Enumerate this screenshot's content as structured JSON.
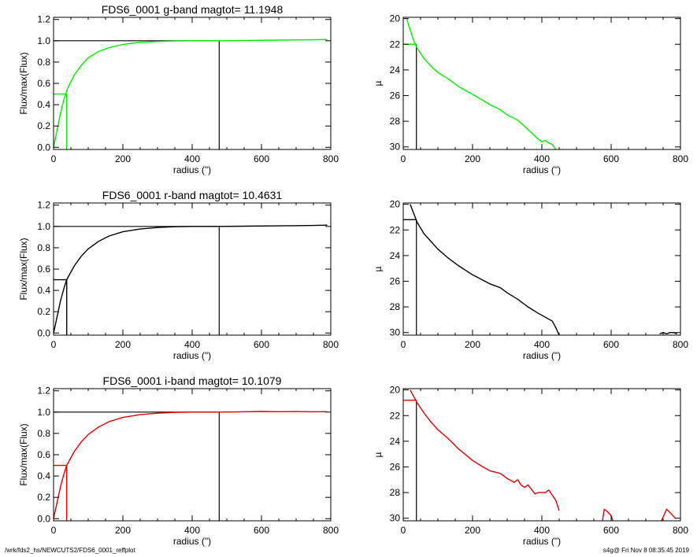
{
  "footer": {
    "path": "/wrk/fds2_hs/NEWCUTS2/FDS6_0001_reffplot",
    "stamp": "s4g@  Fri Nov  8 08:35:45 2019"
  },
  "chart_data": [
    {
      "panel": "g-band-growth",
      "type": "line",
      "title": "FDS6_0001 g-band  magtot=     11.1948",
      "xlabel": "radius (\")",
      "ylabel": "Flux/max(Flux)",
      "xlim": [
        0,
        800
      ],
      "ylim": [
        -0.02,
        1.22
      ],
      "xticks": [
        0,
        200,
        400,
        600,
        800
      ],
      "yticks": [
        0.0,
        0.2,
        0.4,
        0.6,
        0.8,
        1.0,
        1.2
      ],
      "curve_color": "#00ee00",
      "series": [
        {
          "x": [
            0,
            10,
            20,
            30,
            40,
            60,
            80,
            100,
            130,
            160,
            200,
            250,
            300,
            350,
            400,
            450,
            480,
            550,
            650,
            750,
            790
          ],
          "y": [
            0.0,
            0.16,
            0.32,
            0.45,
            0.55,
            0.68,
            0.77,
            0.84,
            0.9,
            0.935,
            0.965,
            0.985,
            0.993,
            0.998,
            1.0,
            1.0,
            1.0,
            1.002,
            1.006,
            1.01,
            1.012
          ]
        }
      ],
      "markers": {
        "half_light_x": 38,
        "half_light_y": 0.5,
        "total_x": 478,
        "total_y": 1.0
      }
    },
    {
      "panel": "g-band-profile",
      "type": "line",
      "xlabel": "radius (\")",
      "ylabel": "µ",
      "xlim": [
        0,
        800
      ],
      "ylim": [
        30.2,
        19.9
      ],
      "xticks": [
        0,
        200,
        400,
        600,
        800
      ],
      "yticks": [
        20,
        22,
        24,
        26,
        28,
        30
      ],
      "curve_color": "#00ee00",
      "series": [
        {
          "x": [
            10,
            20,
            30,
            40,
            60,
            80,
            100,
            130,
            160,
            200,
            250,
            280,
            300,
            330,
            350,
            370,
            390,
            400,
            410,
            420,
            430,
            440
          ],
          "y": [
            20.0,
            20.9,
            21.7,
            22.3,
            23.1,
            23.7,
            24.2,
            24.7,
            25.3,
            25.9,
            26.7,
            27.1,
            27.5,
            27.9,
            28.4,
            28.9,
            29.4,
            29.6,
            29.5,
            29.7,
            29.8,
            30.2
          ]
        }
      ],
      "markers": {
        "half_light_x": 38,
        "half_light_mu": 22.0
      }
    },
    {
      "panel": "r-band-growth",
      "type": "line",
      "title": "FDS6_0001 r-band  magtot=     10.4631",
      "xlabel": "radius (\")",
      "ylabel": "Flux/max(Flux)",
      "xlim": [
        0,
        800
      ],
      "ylim": [
        -0.02,
        1.22
      ],
      "xticks": [
        0,
        200,
        400,
        600,
        800
      ],
      "yticks": [
        0.0,
        0.2,
        0.4,
        0.6,
        0.8,
        1.0,
        1.2
      ],
      "curve_color": "#000000",
      "series": [
        {
          "x": [
            0,
            10,
            20,
            30,
            38,
            60,
            80,
            100,
            130,
            160,
            200,
            250,
            300,
            350,
            400,
            450,
            480,
            550,
            650,
            750,
            790
          ],
          "y": [
            0.0,
            0.15,
            0.3,
            0.42,
            0.5,
            0.63,
            0.72,
            0.79,
            0.86,
            0.91,
            0.95,
            0.976,
            0.99,
            0.997,
            1.0,
            1.0,
            1.0,
            1.002,
            1.005,
            1.009,
            1.012
          ]
        }
      ],
      "markers": {
        "half_light_x": 38,
        "half_light_y": 0.5,
        "total_x": 478,
        "total_y": 1.0
      }
    },
    {
      "panel": "r-band-profile",
      "type": "line",
      "xlabel": "radius (\")",
      "ylabel": "µ",
      "xlim": [
        0,
        800
      ],
      "ylim": [
        30.2,
        19.9
      ],
      "xticks": [
        0,
        200,
        400,
        600,
        800
      ],
      "yticks": [
        20,
        22,
        24,
        26,
        28,
        30
      ],
      "curve_color": "#000000",
      "series": [
        {
          "x": [
            20,
            30,
            40,
            60,
            80,
            100,
            130,
            160,
            200,
            250,
            280,
            300,
            330,
            360,
            390,
            410,
            430,
            440,
            450
          ],
          "y": [
            20.0,
            20.7,
            21.4,
            22.3,
            22.9,
            23.5,
            24.2,
            24.8,
            25.5,
            26.2,
            26.5,
            26.9,
            27.4,
            28.0,
            28.5,
            28.8,
            29.1,
            29.6,
            30.2
          ]
        },
        {
          "x": [
            740,
            750,
            760,
            770,
            780,
            790
          ],
          "y": [
            30.1,
            30.0,
            30.1,
            30.0,
            30.0,
            30.1
          ]
        }
      ],
      "markers": {
        "half_light_x": 38,
        "half_light_mu": 21.2
      }
    },
    {
      "panel": "i-band-growth",
      "type": "line",
      "title": "FDS6_0001 i-band  magtot=     10.1079",
      "xlabel": "radius (\")",
      "ylabel": "Flux/max(Flux)",
      "xlim": [
        0,
        800
      ],
      "ylim": [
        -0.02,
        1.22
      ],
      "xticks": [
        0,
        200,
        400,
        600,
        800
      ],
      "yticks": [
        0.0,
        0.2,
        0.4,
        0.6,
        0.8,
        1.0,
        1.2
      ],
      "curve_color": "#e00000",
      "series": [
        {
          "x": [
            0,
            10,
            20,
            30,
            38,
            60,
            80,
            100,
            130,
            160,
            200,
            250,
            300,
            350,
            400,
            450,
            480,
            550,
            600,
            650,
            700,
            750,
            790
          ],
          "y": [
            0.0,
            0.15,
            0.3,
            0.42,
            0.5,
            0.63,
            0.72,
            0.79,
            0.86,
            0.91,
            0.95,
            0.976,
            0.99,
            0.997,
            1.0,
            1.0,
            1.0,
            1.003,
            1.006,
            1.004,
            1.005,
            1.003,
            1.004
          ]
        }
      ],
      "markers": {
        "half_light_x": 38,
        "half_light_y": 0.5,
        "total_x": 478,
        "total_y": 1.0
      }
    },
    {
      "panel": "i-band-profile",
      "type": "line",
      "xlabel": "radius (\")",
      "ylabel": "µ",
      "xlim": [
        0,
        800
      ],
      "ylim": [
        30.2,
        19.9
      ],
      "xticks": [
        0,
        200,
        400,
        600,
        800
      ],
      "yticks": [
        20,
        22,
        24,
        26,
        28,
        30
      ],
      "curve_color": "#e00000",
      "series": [
        {
          "x": [
            20,
            30,
            40,
            60,
            80,
            100,
            130,
            160,
            200,
            230,
            250,
            280,
            300,
            320,
            330,
            340,
            350,
            360,
            380,
            390,
            410,
            420,
            430,
            440,
            450
          ],
          "y": [
            20.0,
            20.5,
            21.0,
            21.8,
            22.5,
            23.1,
            23.8,
            24.6,
            25.5,
            26.0,
            26.3,
            26.5,
            26.9,
            27.2,
            27.0,
            27.4,
            27.6,
            27.4,
            28.1,
            28.0,
            28.0,
            27.8,
            28.2,
            28.6,
            29.4
          ]
        },
        {
          "x": [
            575,
            580,
            590,
            600,
            605
          ],
          "y": [
            30.2,
            29.3,
            29.5,
            29.8,
            30.2
          ]
        },
        {
          "x": [
            745,
            760,
            775,
            785
          ],
          "y": [
            30.2,
            29.3,
            29.7,
            30.0
          ]
        }
      ],
      "markers": {
        "half_light_x": 38,
        "half_light_mu": 20.8
      }
    }
  ]
}
